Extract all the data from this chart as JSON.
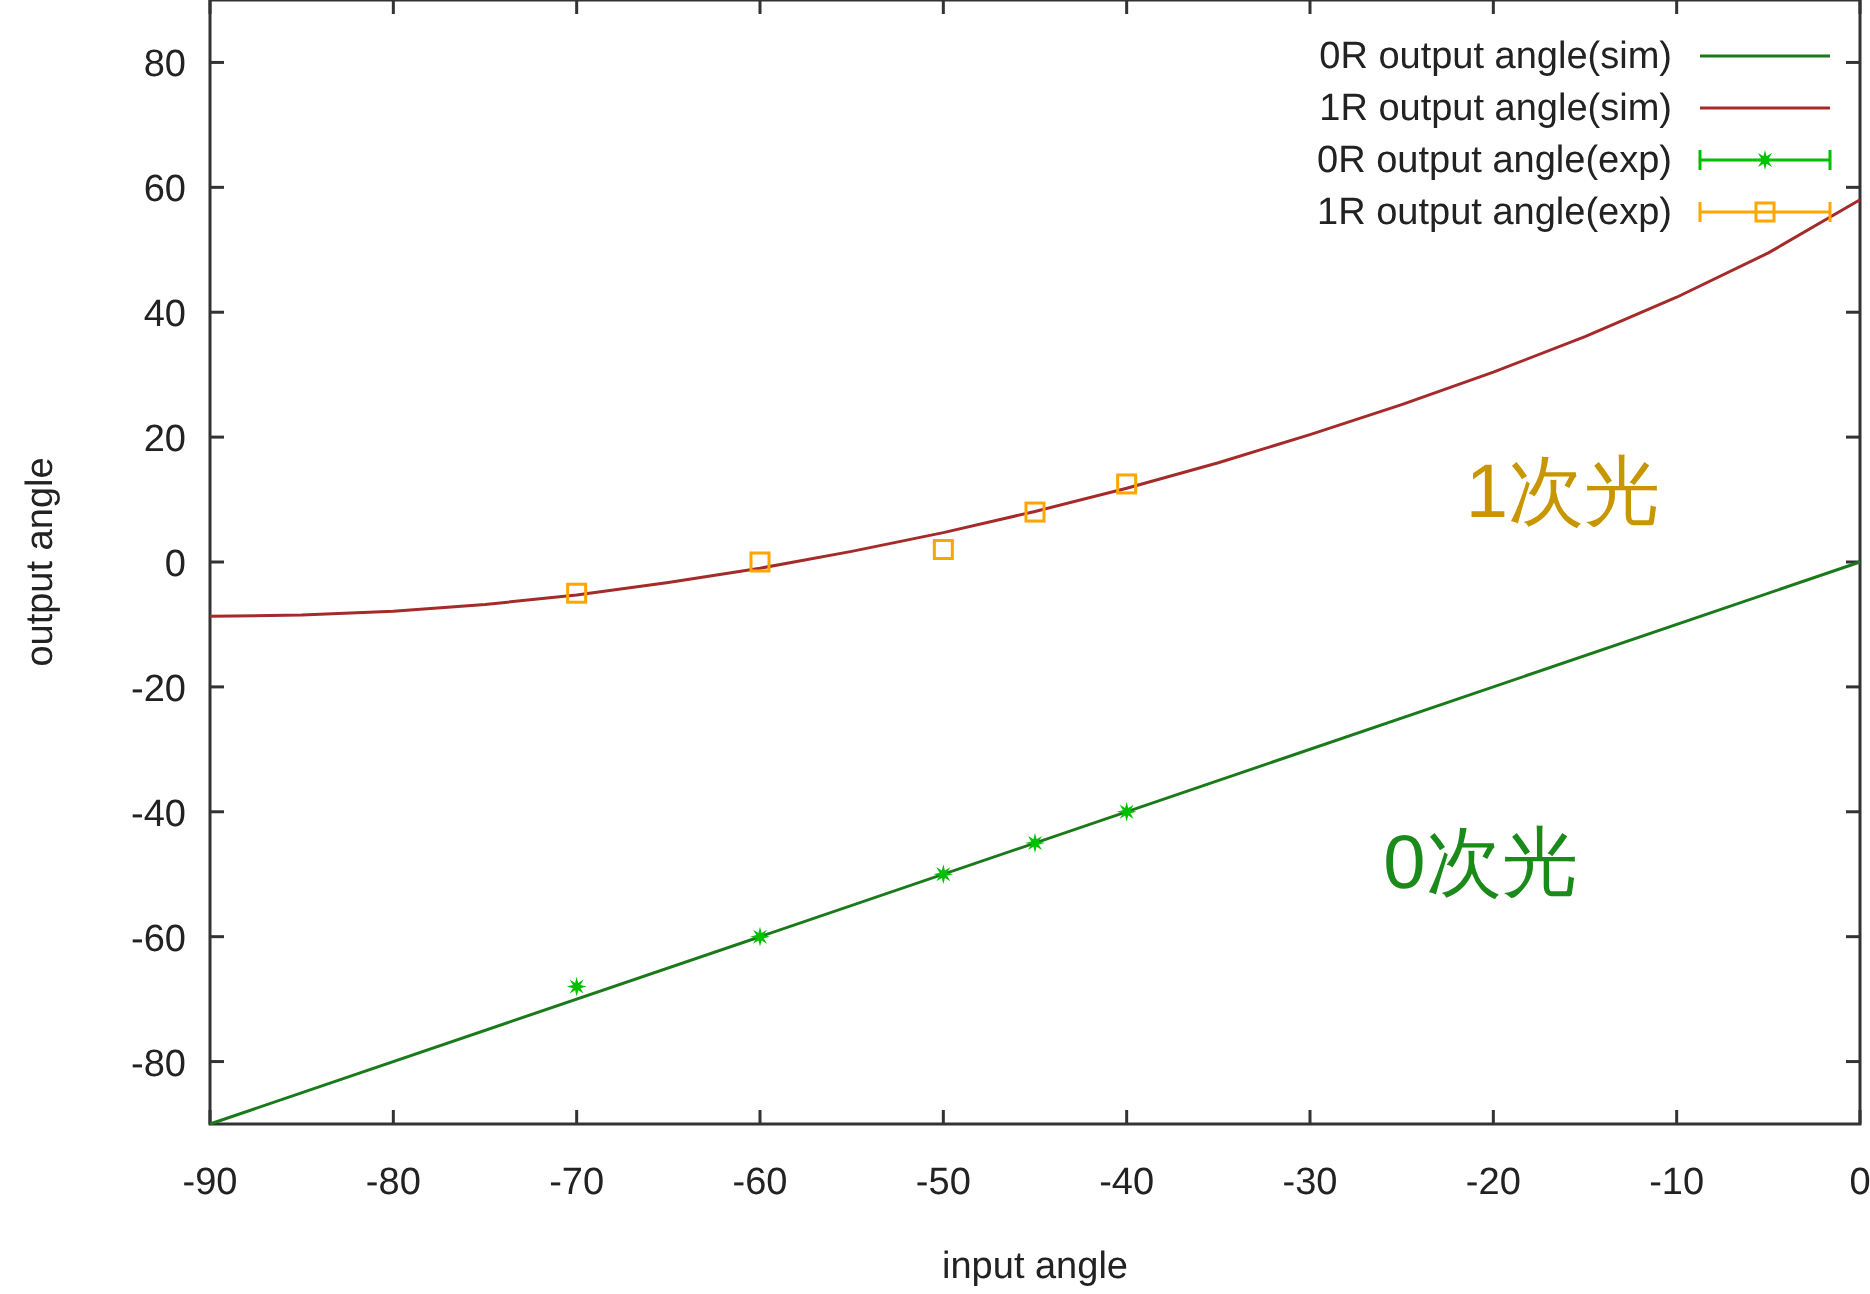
{
  "chart_data": {
    "type": "line",
    "xlabel": "input angle",
    "ylabel": "output angle",
    "xlim": [
      -90,
      0
    ],
    "xticks": [
      -90,
      -80,
      -70,
      -60,
      -50,
      -40,
      -30,
      -20,
      -10,
      0
    ],
    "ylim": [
      -90,
      90
    ],
    "yticks": [
      -80,
      -60,
      -40,
      -20,
      0,
      20,
      40,
      60,
      80
    ],
    "grid": false,
    "legend": "top right",
    "series": [
      {
        "name": "0R output angle(sim)",
        "color": "#1a7a1a",
        "marker": "none",
        "x": [
          -90,
          0
        ],
        "values": [
          -90,
          0
        ]
      },
      {
        "name": "1R output angle(sim)",
        "color": "#a52a2a",
        "marker": "none",
        "x": [
          -90,
          -85,
          -80,
          -75,
          -70,
          -65,
          -60,
          -55,
          -50,
          -45,
          -40,
          -35,
          -30,
          -25,
          -20,
          -15,
          -10,
          -5,
          0
        ],
        "values": [
          -8.7,
          -8.5,
          -7.9,
          -6.8,
          -5.3,
          -3.3,
          -1,
          1.7,
          4.7,
          8.1,
          11.8,
          15.9,
          20.4,
          25.2,
          30.4,
          36.1,
          42.4,
          49.5,
          58
        ]
      },
      {
        "name": "0R output angle(exp)",
        "type": "scatter",
        "color": "#00c000",
        "marker": "star",
        "x": [
          -70,
          -60,
          -50,
          -45,
          -40
        ],
        "values": [
          -68,
          -60,
          -50,
          -45,
          -40
        ]
      },
      {
        "name": "1R output angle(exp)",
        "type": "scatter",
        "color": "#ffa500",
        "marker": "square",
        "x": [
          -70,
          -60,
          -50,
          -45,
          -40
        ],
        "values": [
          -5,
          0,
          2,
          8,
          12.5
        ]
      }
    ],
    "annotations": [
      "1次光",
      "0次光"
    ]
  }
}
